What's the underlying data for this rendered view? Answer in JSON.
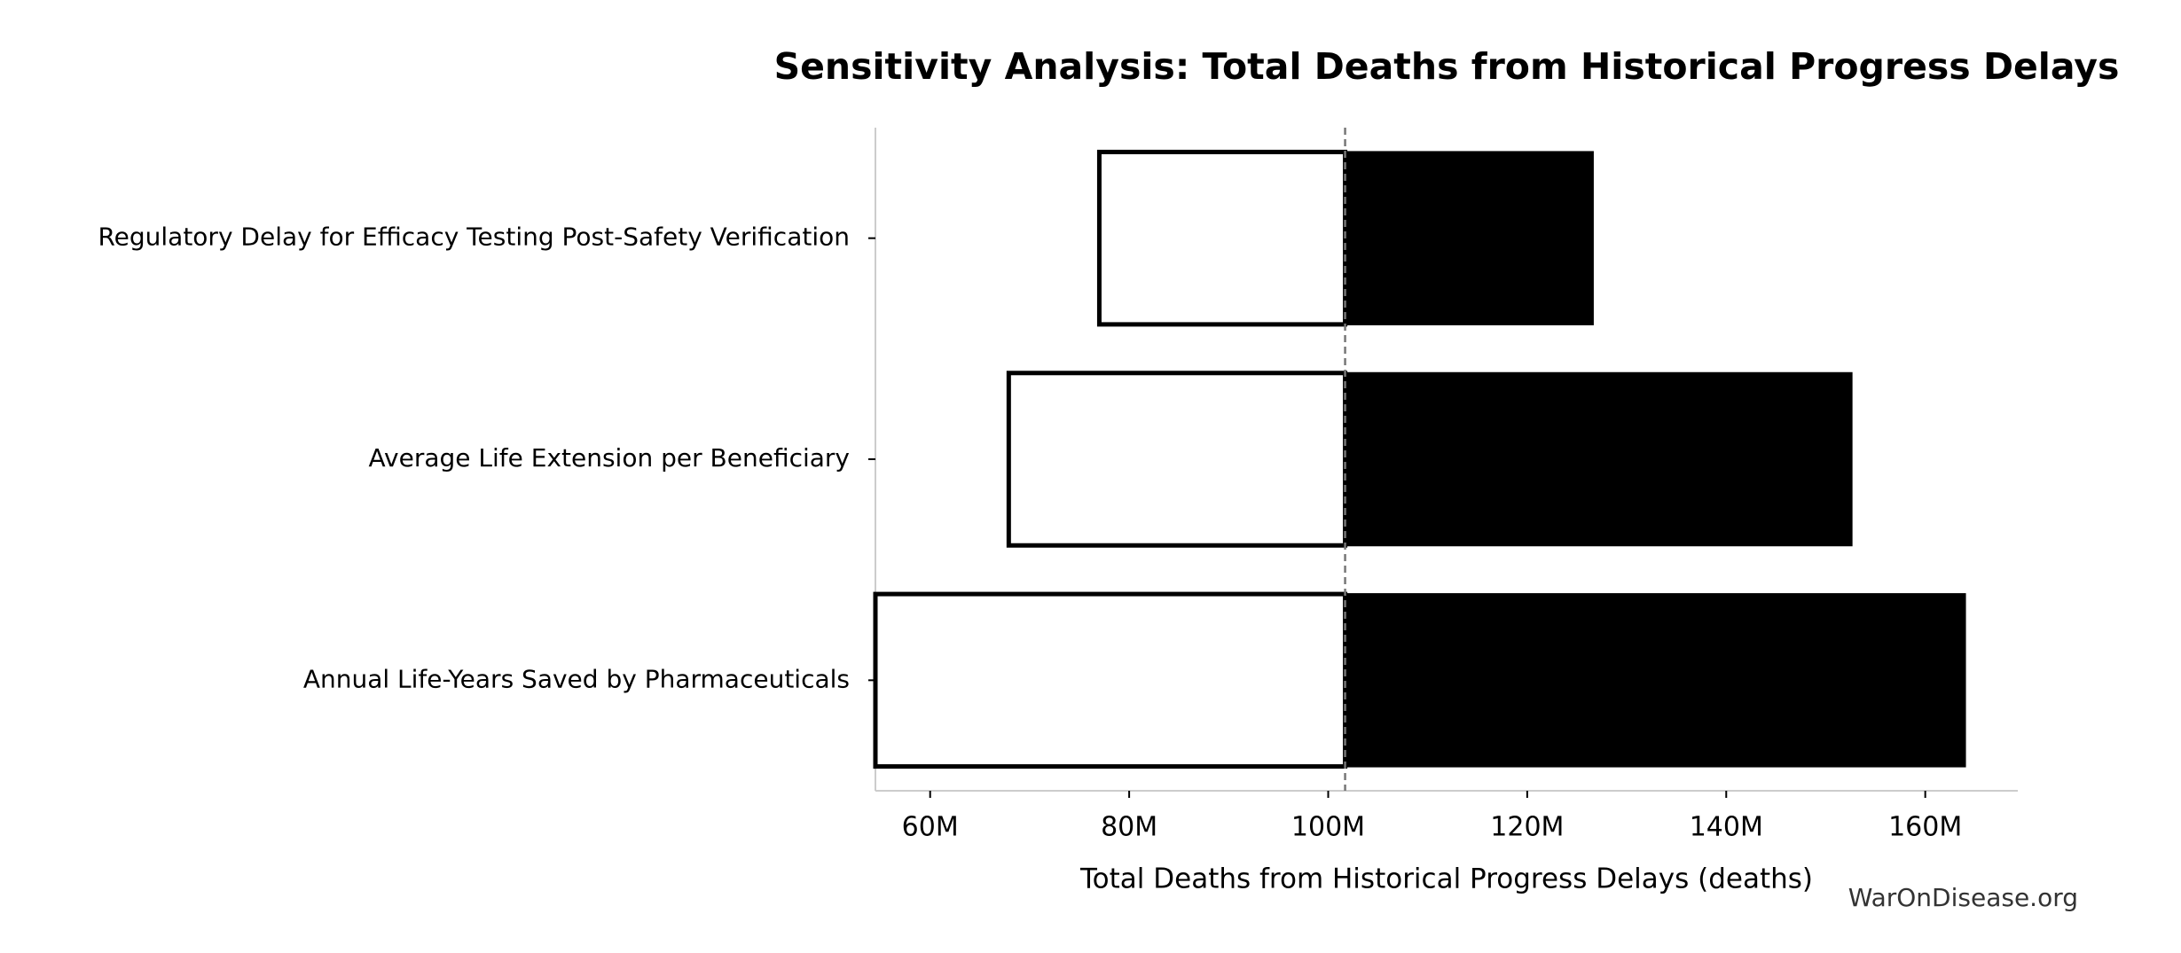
{
  "chart_data": {
    "type": "tornado",
    "title": "Sensitivity Analysis: Total Deaths from Historical Progress Delays",
    "xlabel": "Total Deaths from Historical Progress Delays (deaths)",
    "source": "WarOnDisease.org",
    "categories": [
      "Regulatory Delay for Efficacy Testing Post-Safety Verification",
      "Average Life Extension per Beneficiary",
      "Annual Life-Years Saved by Pharmaceuticals"
    ],
    "baseline": 101700000,
    "series": [
      {
        "color": "#ffffff",
        "values": [
          77000000,
          67900000,
          54500000
        ]
      },
      {
        "color": "#000000",
        "values": [
          126600000,
          152600000,
          164000000
        ]
      }
    ],
    "xlim": [
      54500000,
      169300000
    ],
    "xticks": [
      {
        "value": 60000000,
        "label": "60M"
      },
      {
        "value": 80000000,
        "label": "80M"
      },
      {
        "value": 100000000,
        "label": "100M"
      },
      {
        "value": 120000000,
        "label": "120M"
      },
      {
        "value": 140000000,
        "label": "140M"
      },
      {
        "value": 160000000,
        "label": "160M"
      }
    ]
  }
}
